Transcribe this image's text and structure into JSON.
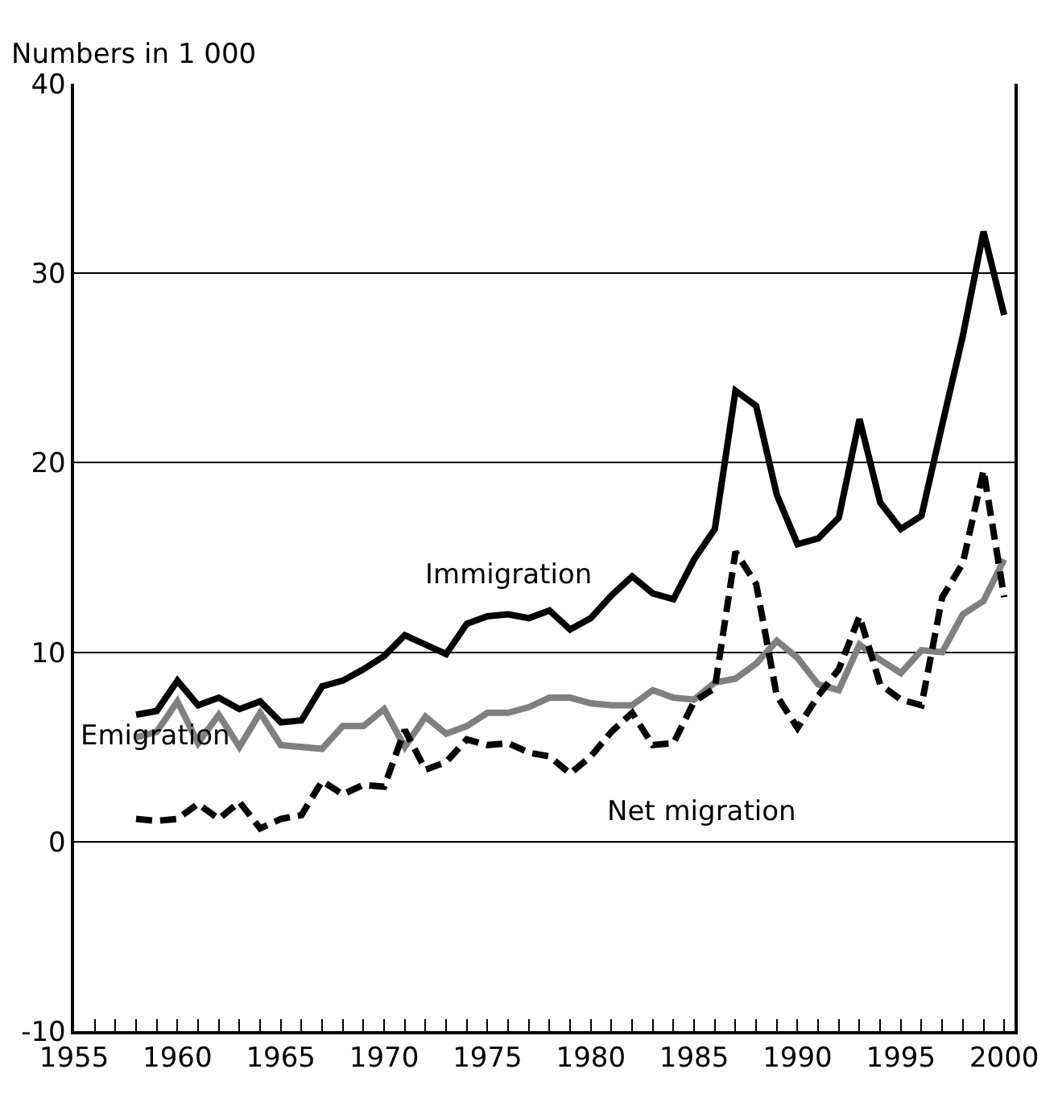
{
  "chart_data": {
    "type": "line",
    "ylabel": "Numbers in 1 000",
    "x": [
      1958,
      1959,
      1960,
      1961,
      1962,
      1963,
      1964,
      1965,
      1966,
      1967,
      1968,
      1969,
      1970,
      1971,
      1972,
      1973,
      1974,
      1975,
      1976,
      1977,
      1978,
      1979,
      1980,
      1981,
      1982,
      1983,
      1984,
      1985,
      1986,
      1987,
      1988,
      1989,
      1990,
      1991,
      1992,
      1993,
      1994,
      1995,
      1996,
      1997,
      1998,
      1999,
      2000
    ],
    "series": [
      {
        "name": "Immigration",
        "color": "#000000",
        "line_style": "solid",
        "values": [
          6.7,
          6.9,
          8.5,
          7.2,
          7.6,
          7.0,
          7.4,
          6.3,
          6.4,
          8.2,
          8.5,
          9.1,
          9.8,
          10.9,
          10.4,
          9.9,
          11.5,
          11.9,
          12.0,
          11.8,
          12.2,
          11.2,
          11.8,
          13.0,
          14.0,
          13.1,
          12.8,
          14.9,
          16.5,
          23.8,
          23.0,
          18.3,
          15.7,
          16.0,
          17.1,
          22.3,
          17.9,
          16.5,
          17.2,
          22.0,
          26.7,
          32.2,
          27.8
        ]
      },
      {
        "name": "Emigration",
        "color": "#808080",
        "line_style": "solid",
        "values": [
          5.5,
          5.8,
          7.4,
          5.2,
          6.7,
          5.0,
          6.8,
          5.1,
          5.0,
          4.9,
          6.1,
          6.1,
          7.0,
          5.0,
          6.6,
          5.7,
          6.1,
          6.8,
          6.8,
          7.1,
          7.6,
          7.6,
          7.3,
          7.2,
          7.2,
          8.0,
          7.6,
          7.5,
          8.4,
          8.6,
          9.4,
          10.6,
          9.7,
          8.3,
          8.0,
          10.4,
          9.6,
          8.9,
          10.1,
          10.0,
          12.0,
          12.7,
          14.9
        ]
      },
      {
        "name": "Net migration",
        "color": "#000000",
        "line_style": "dashed",
        "values": [
          1.2,
          1.1,
          1.2,
          2.0,
          1.2,
          2.1,
          0.7,
          1.2,
          1.4,
          3.2,
          2.5,
          3.0,
          2.9,
          5.9,
          3.8,
          4.2,
          5.4,
          5.1,
          5.2,
          4.7,
          4.5,
          3.6,
          4.5,
          5.8,
          6.8,
          5.1,
          5.2,
          7.4,
          8.1,
          15.3,
          13.6,
          7.7,
          6.0,
          7.7,
          9.1,
          11.9,
          8.3,
          7.5,
          7.2,
          12.9,
          14.7,
          19.6,
          12.9
        ]
      }
    ],
    "xlim": [
      1955,
      2000.5
    ],
    "xticks": [
      1955,
      {
        "value": 1956,
        "label": null
      },
      {
        "value": 1957,
        "label": null
      },
      {
        "value": 1958,
        "label": null
      },
      {
        "value": 1959,
        "label": null
      },
      1960,
      {
        "value": 1961,
        "label": null
      },
      {
        "value": 1962,
        "label": null
      },
      {
        "value": 1963,
        "label": null
      },
      {
        "value": 1964,
        "label": null
      },
      1965,
      {
        "value": 1966,
        "label": null
      },
      {
        "value": 1967,
        "label": null
      },
      {
        "value": 1968,
        "label": null
      },
      {
        "value": 1969,
        "label": null
      },
      1970,
      {
        "value": 1971,
        "label": null
      },
      {
        "value": 1972,
        "label": null
      },
      {
        "value": 1973,
        "label": null
      },
      {
        "value": 1974,
        "label": null
      },
      1975,
      {
        "value": 1976,
        "label": null
      },
      {
        "value": 1977,
        "label": null
      },
      {
        "value": 1978,
        "label": null
      },
      {
        "value": 1979,
        "label": null
      },
      1980,
      {
        "value": 1981,
        "label": null
      },
      {
        "value": 1982,
        "label": null
      },
      {
        "value": 1983,
        "label": null
      },
      {
        "value": 1984,
        "label": null
      },
      1985,
      {
        "value": 1986,
        "label": null
      },
      {
        "value": 1987,
        "label": null
      },
      {
        "value": 1988,
        "label": null
      },
      {
        "value": 1989,
        "label": null
      },
      1990,
      {
        "value": 1991,
        "label": null
      },
      {
        "value": 1992,
        "label": null
      },
      {
        "value": 1993,
        "label": null
      },
      {
        "value": 1994,
        "label": null
      },
      1995,
      {
        "value": 1996,
        "label": null
      },
      {
        "value": 1997,
        "label": null
      },
      {
        "value": 1998,
        "label": null
      },
      {
        "value": 1999,
        "label": null
      },
      2000
    ],
    "ylim": [
      -10,
      40
    ],
    "yticks": [
      -10,
      0,
      10,
      20,
      30,
      40
    ],
    "grid": "y",
    "legend": false,
    "marker": "none"
  }
}
